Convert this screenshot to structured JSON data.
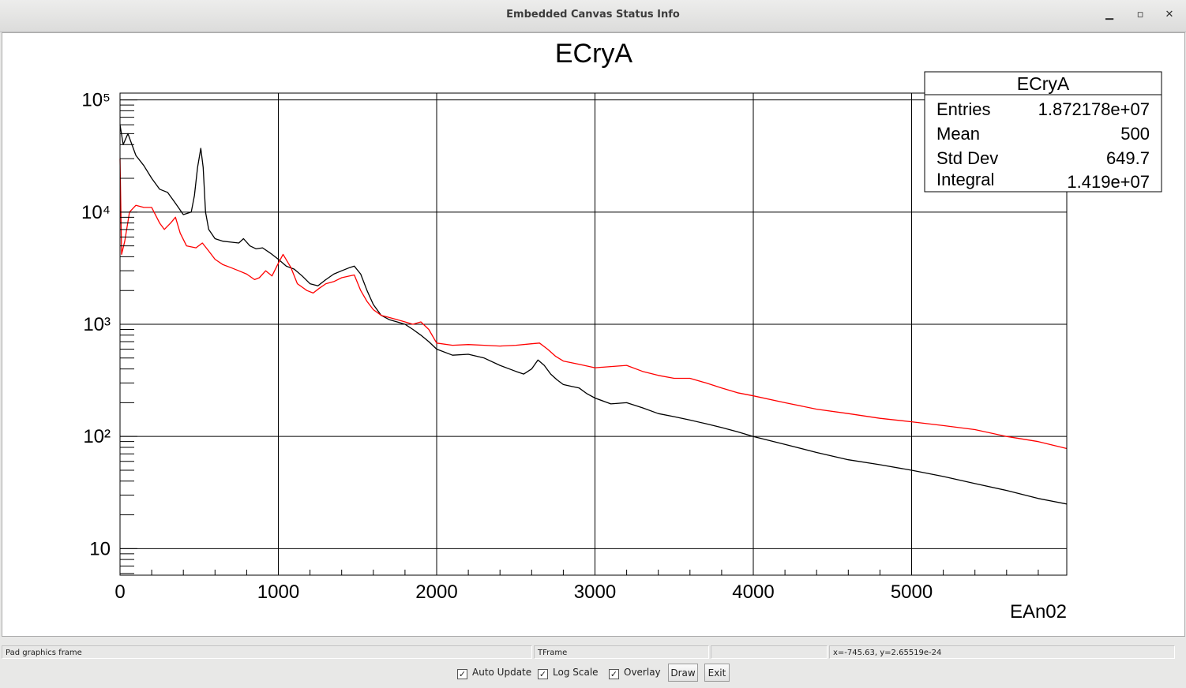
{
  "window": {
    "title": "Embedded Canvas Status Info",
    "minimize_symbol": "▁",
    "maximize_symbol": "▫",
    "close_symbol": "✕"
  },
  "status": {
    "object": "Pad graphics frame",
    "class": "TFrame",
    "info": "",
    "coords": "x=-745.63, y=2.65519e-24"
  },
  "controls": {
    "auto_update": "Auto Update",
    "log_scale": "Log Scale",
    "overlay": "Overlay",
    "draw": "Draw",
    "exit": "Exit",
    "check_glyph": "✓"
  },
  "stats": {
    "title": "ECryA",
    "rows": [
      {
        "label": "Entries",
        "value": "1.872178e+07"
      },
      {
        "label": "Mean",
        "value": "500"
      },
      {
        "label": "Std Dev",
        "value": "649.7"
      },
      {
        "label": "Integral",
        "value": "1.419e+07"
      }
    ]
  },
  "chart_data": {
    "type": "line",
    "title": "ECryA",
    "xlabel": "EAn02",
    "ylabel": "",
    "xlim": [
      0,
      5980
    ],
    "ylim": [
      5.8,
      115000
    ],
    "log_y": true,
    "grid": true,
    "x_ticks": [
      "0",
      "1000",
      "2000",
      "3000",
      "4000",
      "5000"
    ],
    "y_ticks": [
      "10",
      "10²",
      "10³",
      "10⁴",
      "10⁵"
    ],
    "series": [
      {
        "color": "#000000",
        "x": [
          0,
          20,
          50,
          100,
          150,
          200,
          250,
          300,
          350,
          400,
          450,
          470,
          490,
          510,
          525,
          540,
          560,
          600,
          650,
          700,
          750,
          780,
          820,
          860,
          900,
          950,
          1000,
          1050,
          1100,
          1150,
          1200,
          1250,
          1300,
          1350,
          1400,
          1450,
          1480,
          1520,
          1560,
          1600,
          1650,
          1700,
          1750,
          1800,
          1850,
          1900,
          1950,
          2000,
          2100,
          2200,
          2300,
          2400,
          2500,
          2550,
          2600,
          2640,
          2680,
          2720,
          2760,
          2800,
          2850,
          2900,
          2950,
          3000,
          3100,
          3200,
          3300,
          3400,
          3500,
          3600,
          3700,
          3800,
          3900,
          4000,
          4200,
          4400,
          4600,
          4800,
          5000,
          5200,
          5400,
          5600,
          5800,
          5980
        ],
        "y": [
          60000,
          40000,
          50000,
          32000,
          26000,
          20000,
          16000,
          15000,
          12000,
          9500,
          10000,
          14000,
          25000,
          37000,
          25000,
          10000,
          7000,
          5800,
          5500,
          5400,
          5300,
          5800,
          5000,
          4700,
          4800,
          4300,
          3800,
          3300,
          3100,
          2700,
          2300,
          2200,
          2500,
          2800,
          3000,
          3200,
          3300,
          2800,
          2000,
          1500,
          1200,
          1100,
          1050,
          1000,
          900,
          800,
          700,
          600,
          530,
          540,
          500,
          430,
          380,
          360,
          400,
          480,
          430,
          360,
          320,
          290,
          280,
          270,
          240,
          220,
          195,
          200,
          180,
          160,
          150,
          140,
          130,
          120,
          110,
          100,
          85,
          72,
          62,
          56,
          50,
          44,
          38,
          33,
          28,
          25
        ]
      },
      {
        "color": "#ff0000",
        "x": [
          0,
          10,
          30,
          60,
          100,
          150,
          200,
          250,
          280,
          320,
          350,
          380,
          420,
          480,
          520,
          560,
          600,
          650,
          700,
          750,
          800,
          850,
          880,
          920,
          960,
          1000,
          1030,
          1080,
          1120,
          1180,
          1220,
          1260,
          1300,
          1350,
          1400,
          1450,
          1480,
          1520,
          1560,
          1600,
          1650,
          1700,
          1750,
          1800,
          1850,
          1900,
          1950,
          2000,
          2100,
          2200,
          2300,
          2400,
          2500,
          2600,
          2650,
          2700,
          2750,
          2800,
          2900,
          3000,
          3100,
          3200,
          3300,
          3400,
          3500,
          3600,
          3700,
          3800,
          3900,
          4000,
          4200,
          4400,
          4600,
          4800,
          5000,
          5200,
          5400,
          5600,
          5800,
          5980
        ],
        "y": [
          30000,
          4200,
          5500,
          10000,
          11500,
          11000,
          11000,
          8000,
          7000,
          8000,
          9000,
          6500,
          5000,
          4800,
          5300,
          4500,
          3800,
          3400,
          3200,
          3000,
          2800,
          2500,
          2600,
          3000,
          2700,
          3500,
          4200,
          3200,
          2300,
          2000,
          1900,
          2100,
          2300,
          2400,
          2600,
          2700,
          2750,
          2000,
          1600,
          1350,
          1200,
          1150,
          1100,
          1050,
          1000,
          1050,
          900,
          680,
          650,
          660,
          650,
          640,
          650,
          670,
          680,
          600,
          520,
          470,
          440,
          410,
          420,
          430,
          380,
          350,
          330,
          330,
          300,
          270,
          245,
          230,
          200,
          175,
          160,
          145,
          135,
          125,
          115,
          100,
          90,
          78
        ]
      }
    ]
  }
}
